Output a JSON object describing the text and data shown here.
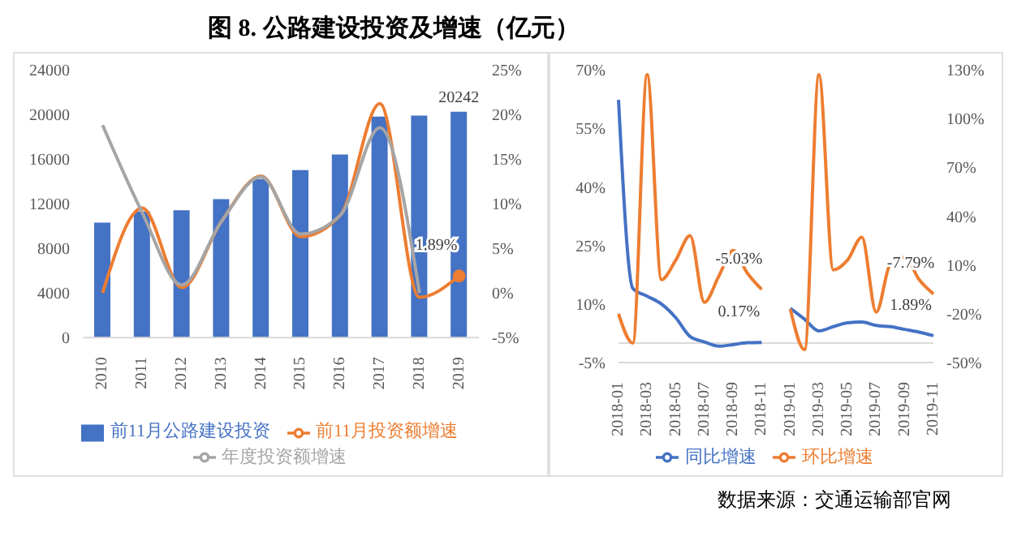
{
  "chart_data": [
    {
      "type": "bar",
      "title": "图 8. 公路建设投资及增速（亿元）",
      "categories": [
        "2010",
        "2011",
        "2012",
        "2013",
        "2014",
        "2015",
        "2016",
        "2017",
        "2018",
        "2019"
      ],
      "series": [
        {
          "name": "前11月公路建设投资",
          "color": "#4472c4",
          "values": [
            10300,
            11300,
            11400,
            12400,
            14200,
            15000,
            16400,
            19800,
            19900,
            20242
          ],
          "value_labels": [
            null,
            null,
            null,
            null,
            null,
            null,
            null,
            null,
            null,
            "20242"
          ]
        },
        {
          "type": "line",
          "name": "前11月投资额增速",
          "color": "#ed7d31",
          "axis": "y2",
          "values": [
            0,
            9.5,
            0.6,
            8,
            13.1,
            6.3,
            8.7,
            21.2,
            -0.5,
            1.89
          ],
          "value_labels": [
            null,
            null,
            null,
            null,
            null,
            null,
            null,
            null,
            null,
            "1.89%"
          ]
        },
        {
          "type": "line",
          "name": "年度投资额增速",
          "color": "#a5a5a5",
          "axis": "y2",
          "values": [
            18.8,
            9,
            0.9,
            8,
            13,
            6.6,
            8.7,
            18.5,
            0,
            null
          ]
        }
      ],
      "ylim": [
        0,
        24000
      ],
      "yticks": [
        0,
        4000,
        8000,
        12000,
        16000,
        20000,
        24000
      ],
      "y2lim": [
        -5,
        25
      ],
      "y2ticks": [
        {
          "value": -5,
          "label": "-5%"
        },
        {
          "value": 0,
          "label": "0%"
        },
        {
          "value": 5,
          "label": "5%"
        },
        {
          "value": 10,
          "label": "10%"
        },
        {
          "value": 15,
          "label": "15%"
        },
        {
          "value": 20,
          "label": "20%"
        },
        {
          "value": 25,
          "label": "25%"
        }
      ],
      "grid": false,
      "legend": "bottom",
      "marker": "none"
    },
    {
      "type": "line",
      "categories": [
        "2018-01",
        null,
        "2018-03",
        null,
        "2018-05",
        null,
        "2018-07",
        null,
        "2018-09",
        null,
        "2018-11",
        null,
        "2019-01",
        null,
        "2019-03",
        null,
        "2019-05",
        null,
        "2019-07",
        null,
        "2019-09",
        null,
        "2019-11"
      ],
      "series": [
        {
          "name": "同比增速",
          "color": "#4472c4",
          "values": [
            62.3,
            14,
            12,
            10,
            6.5,
            1.7,
            0.3,
            -0.8,
            -0.4,
            0.1,
            0.17,
            null,
            8.9,
            6.1,
            3.1,
            4.2,
            5.2,
            5.4,
            4.5,
            4.2,
            3.5,
            2.8,
            1.89
          ],
          "value_labels": [
            null,
            null,
            null,
            null,
            null,
            null,
            null,
            null,
            null,
            null,
            "0.17%",
            null,
            null,
            null,
            null,
            null,
            null,
            null,
            null,
            null,
            null,
            null,
            "1.89%"
          ]
        },
        {
          "name": "环比增速",
          "color": "#ed7d31",
          "axis": "y2",
          "values": [
            -20,
            -38,
            127,
            1,
            13,
            28,
            -13,
            3,
            19,
            5,
            -5.03,
            null,
            -17,
            -42,
            127,
            7,
            13,
            27,
            -19,
            11,
            15,
            1,
            -7.79
          ],
          "value_labels": [
            null,
            null,
            null,
            null,
            null,
            null,
            null,
            null,
            null,
            null,
            "-5.03%",
            null,
            null,
            null,
            null,
            null,
            null,
            null,
            null,
            null,
            null,
            null,
            "-7.79%"
          ]
        }
      ],
      "ylim": [
        -5,
        70
      ],
      "yticks": [
        {
          "value": -5,
          "label": "-5%"
        },
        {
          "value": 10,
          "label": "10%"
        },
        {
          "value": 25,
          "label": "25%"
        },
        {
          "value": 40,
          "label": "40%"
        },
        {
          "value": 55,
          "label": "55%"
        },
        {
          "value": 70,
          "label": "70%"
        }
      ],
      "y2lim": [
        -50,
        130
      ],
      "y2ticks": [
        {
          "value": -50,
          "label": "-50%"
        },
        {
          "value": -20,
          "label": "-20%"
        },
        {
          "value": 10,
          "label": "10%"
        },
        {
          "value": 40,
          "label": "40%"
        },
        {
          "value": 70,
          "label": "70%"
        },
        {
          "value": 100,
          "label": "100%"
        },
        {
          "value": 130,
          "label": "130%"
        }
      ],
      "ref_lines": [
        {
          "axis": "y",
          "value": 0,
          "color": "#d9d9d9"
        }
      ],
      "grid": false,
      "legend": "bottom",
      "marker": "none",
      "annotations": [
        "数据来源：交通运输部官网"
      ]
    }
  ]
}
